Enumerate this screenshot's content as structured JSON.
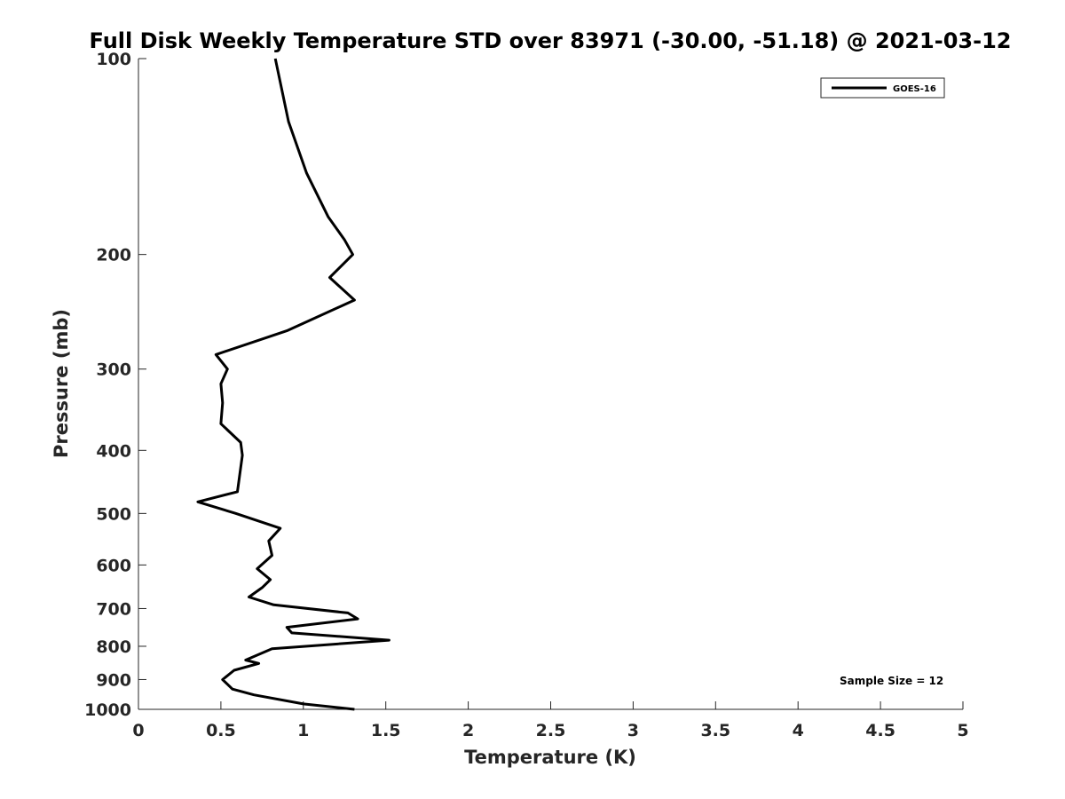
{
  "chart_data": {
    "type": "line",
    "title": "Full Disk Weekly Temperature STD over 83971 (-30.00, -51.18) @ 2021-03-12",
    "xlabel": "Temperature (K)",
    "ylabel": "Pressure (mb)",
    "xlim": [
      0,
      5
    ],
    "ylim": [
      100,
      1000
    ],
    "yscale": "log",
    "y_reversed": true,
    "x_ticks": [
      "0",
      "0.5",
      "1",
      "1.5",
      "2",
      "2.5",
      "3",
      "3.5",
      "4",
      "4.5",
      "5"
    ],
    "y_ticks": [
      "100",
      "200",
      "300",
      "400",
      "500",
      "600",
      "700",
      "800",
      "900",
      "1000"
    ],
    "legend": {
      "position": "top-right",
      "entries": [
        "GOES-16"
      ]
    },
    "annotation": "Sample Size = 12",
    "grid": false,
    "series": [
      {
        "name": "GOES-16",
        "color": "#000000",
        "points": [
          [
            0.83,
            100
          ],
          [
            0.91,
            125
          ],
          [
            1.02,
            150
          ],
          [
            1.15,
            175
          ],
          [
            1.25,
            190
          ],
          [
            1.3,
            200
          ],
          [
            1.16,
            217
          ],
          [
            1.31,
            235
          ],
          [
            0.9,
            262
          ],
          [
            0.47,
            285
          ],
          [
            0.54,
            300
          ],
          [
            0.5,
            316
          ],
          [
            0.51,
            338
          ],
          [
            0.5,
            364
          ],
          [
            0.62,
            389
          ],
          [
            0.63,
            407
          ],
          [
            0.6,
            463
          ],
          [
            0.36,
            480
          ],
          [
            0.59,
            500
          ],
          [
            0.86,
            527
          ],
          [
            0.79,
            551
          ],
          [
            0.81,
            580
          ],
          [
            0.72,
            608
          ],
          [
            0.8,
            632
          ],
          [
            0.75,
            650
          ],
          [
            0.67,
            672
          ],
          [
            0.82,
            691
          ],
          [
            1.27,
            711
          ],
          [
            1.33,
            726
          ],
          [
            0.9,
            748
          ],
          [
            0.93,
            763
          ],
          [
            1.52,
            783
          ],
          [
            0.81,
            807
          ],
          [
            0.65,
            840
          ],
          [
            0.73,
            850
          ],
          [
            0.58,
            871
          ],
          [
            0.51,
            900
          ],
          [
            0.57,
            931
          ],
          [
            0.7,
            950
          ],
          [
            1.0,
            981
          ],
          [
            1.31,
            1000
          ]
        ]
      }
    ]
  }
}
